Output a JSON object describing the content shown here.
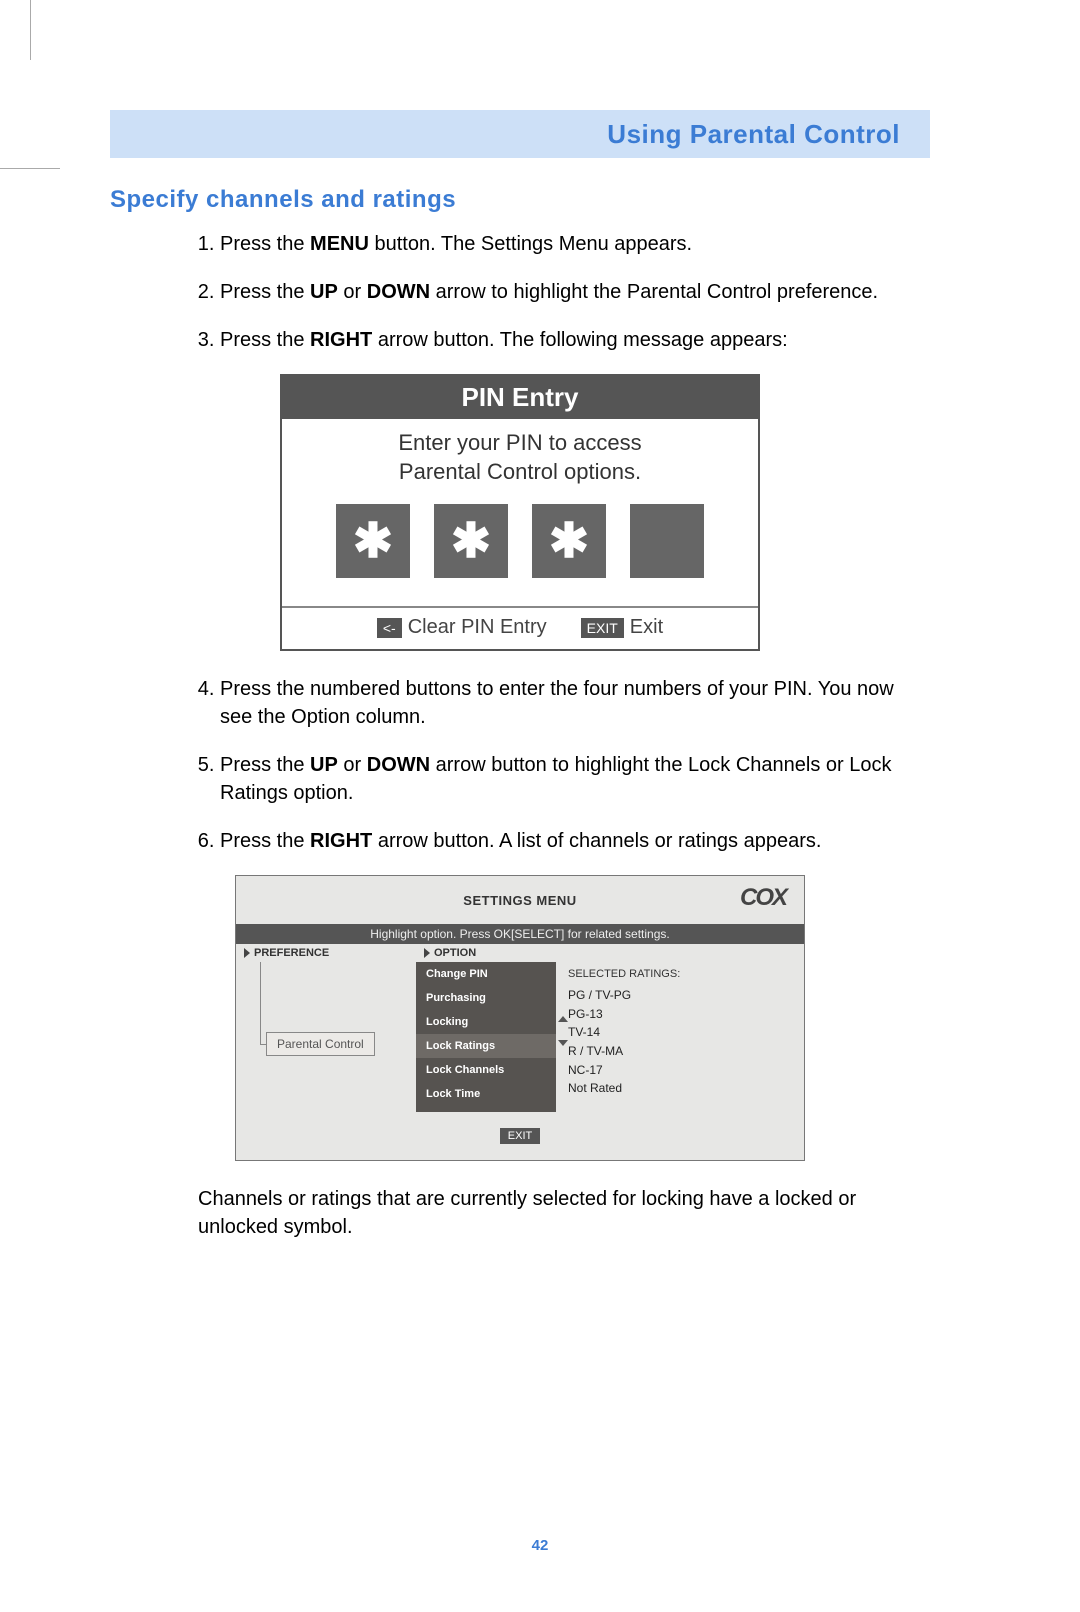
{
  "header": {
    "title": "Using Parental Control"
  },
  "section": {
    "title": "Specify channels and ratings"
  },
  "steps": {
    "s1a": "Press the ",
    "s1b": "MENU",
    "s1c": " button. The Settings Menu appears.",
    "s2a": "Press the ",
    "s2b": "UP",
    "s2c": " or ",
    "s2d": "DOWN",
    "s2e": " arrow to highlight the Parental Control preference.",
    "s3a": "Press the ",
    "s3b": "RIGHT",
    "s3c": " arrow button. The following message appears:",
    "s4": "Press the numbered buttons to enter the four numbers of your PIN. You now see the Option column.",
    "s5a": "Press the ",
    "s5b": "UP",
    "s5c": " or ",
    "s5d": "DOWN",
    "s5e": " arrow button to highlight the Lock Channels or Lock Ratings option.",
    "s6a": "Press the ",
    "s6b": "RIGHT",
    "s6c": " arrow button. A list of channels or ratings appears."
  },
  "pin": {
    "title": "PIN Entry",
    "msg1": "Enter your PIN to access",
    "msg2": "Parental Control options.",
    "star": "✱",
    "clear_tag": "<-",
    "clear_label": "Clear PIN Entry",
    "exit_tag": "EXIT",
    "exit_label": "Exit"
  },
  "settings": {
    "title": "SETTINGS MENU",
    "logo": "COX",
    "hint": "Highlight option. Press OK[SELECT] for related settings.",
    "col1": "PREFERENCE",
    "col2": "OPTION",
    "pref": "Parental Control",
    "options": {
      "o0": "Change PIN",
      "o1": "Purchasing",
      "o2": "Locking",
      "o3": "Lock Ratings",
      "o4": "Lock Channels",
      "o5": "Lock Time"
    },
    "ratings_hdr": "SELECTED RATINGS:",
    "ratings": {
      "r0": "PG / TV-PG",
      "r1": "PG-13",
      "r2": "TV-14",
      "r3": "R / TV-MA",
      "r4": "NC-17",
      "r5": "Not Rated"
    },
    "exit": "EXIT"
  },
  "footer_text": "Channels or ratings that are currently selected for locking have a locked or unlocked symbol.",
  "page_number": "42"
}
